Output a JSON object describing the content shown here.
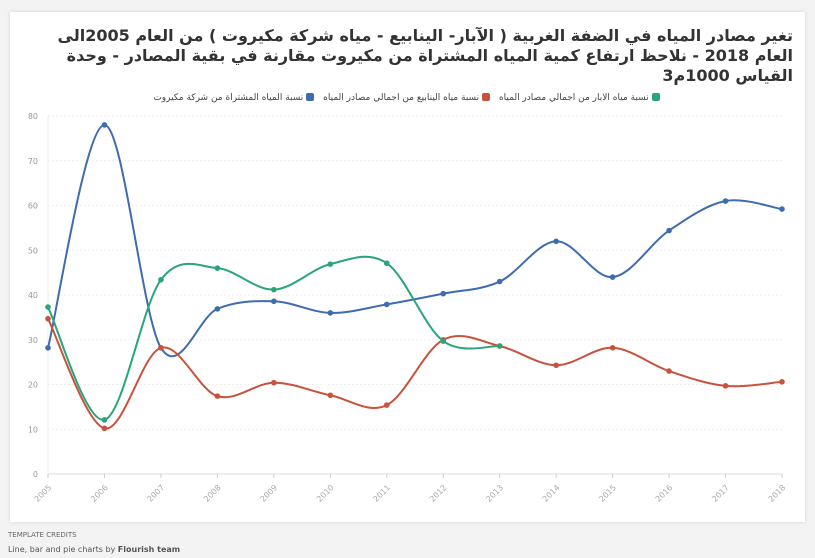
{
  "title": "تغير مصادر المياه في الضفة الغربية ( الآبار- الينابيع - مياه شركة مكيروت ) من العام 2005الى العام 2018 - نلاحظ ارتفاع كمية المياه المشتراة من مكيروت مقارنة في بقية المصادر - وحدة القياس 1000م3",
  "credits": {
    "label": "TEMPLATE CREDITS",
    "text": "Line, bar and pie charts by ",
    "author": "Flourish team"
  },
  "chart_data": {
    "type": "line",
    "title": "تغير مصادر المياه في الضفة الغربية",
    "x": [
      "2005",
      "2006",
      "2007",
      "2008",
      "2009",
      "2010",
      "2011",
      "2012",
      "2013",
      "2014",
      "2015",
      "2016",
      "2017",
      "2018"
    ],
    "ylim": [
      0,
      80
    ],
    "yticks": [
      "0",
      "10",
      "20",
      "30",
      "40",
      "50",
      "60",
      "70",
      "80"
    ],
    "grid": true,
    "legend_position": "top",
    "series": [
      {
        "name": "نسبة المياه المشتراة من شركة مكيروت",
        "color": "#3f6bb0",
        "values": [
          28.2,
          78,
          28.2,
          36.9,
          38.6,
          36,
          37.9,
          40.3,
          43,
          52,
          44,
          54.4,
          61,
          59.2
        ]
      },
      {
        "name": "نسبة مياه الينابيع من اجمالي مصادر المياه",
        "color": "#c9523d",
        "values": [
          34.7,
          10.2,
          28.2,
          17.4,
          20.4,
          17.6,
          15.4,
          30,
          28.6,
          24.3,
          28.2,
          23,
          19.7,
          20.6
        ]
      },
      {
        "name": "نسبة مياه الابار من اجمالي مصادر المياه",
        "color": "#2aa57a",
        "values": [
          37.3,
          12.1,
          43.4,
          46,
          41.2,
          46.9,
          47.1,
          29.7,
          28.6,
          null,
          null,
          null,
          null,
          null
        ]
      }
    ]
  }
}
